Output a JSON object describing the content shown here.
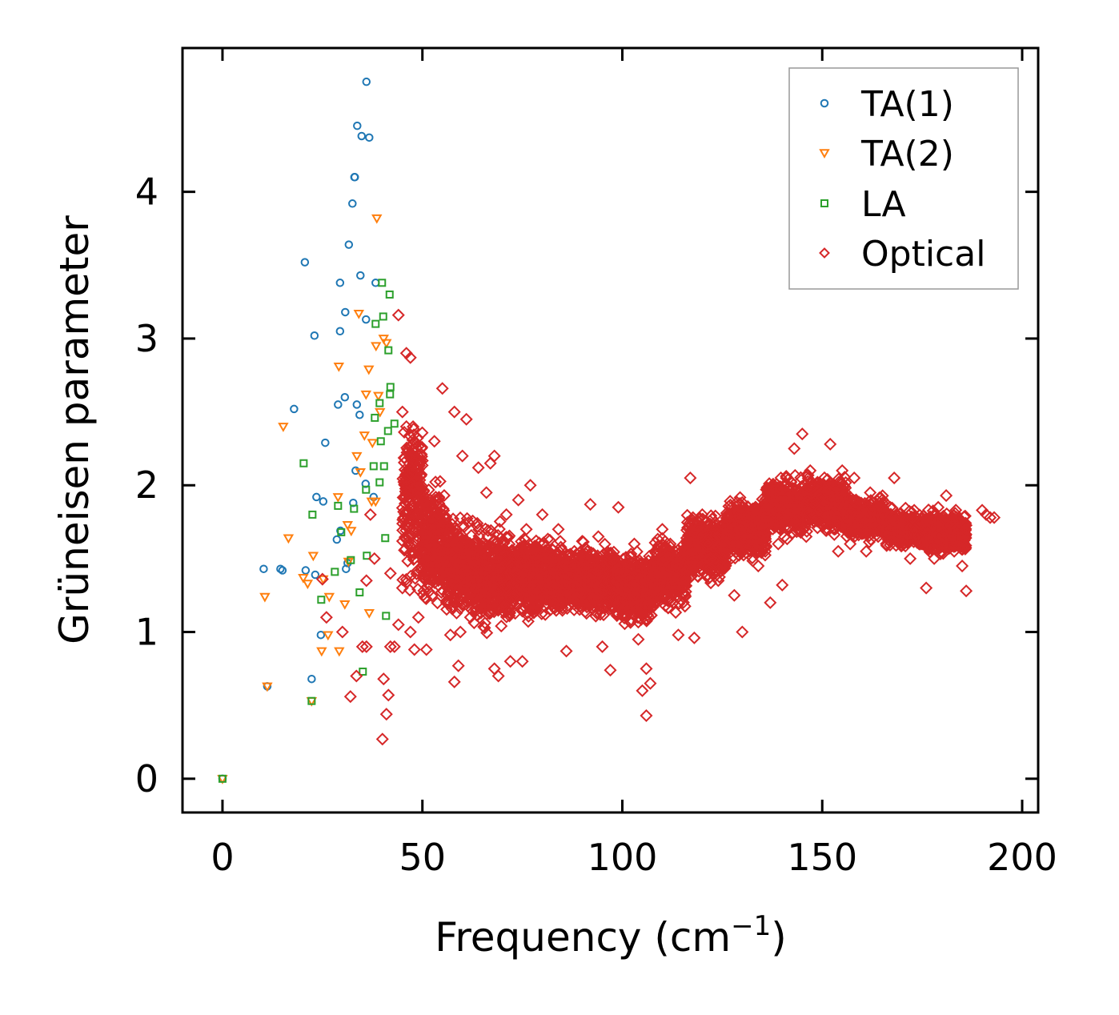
{
  "chart_data": {
    "type": "scatter",
    "title": "",
    "xlabel": "Frequency (cm",
    "xlabel_sup": "−1",
    "xlabel_close": ")",
    "ylabel": "Grüneisen parameter",
    "xlim": [
      -10,
      204
    ],
    "ylim": [
      -0.23,
      4.98
    ],
    "xticks": [
      0,
      50,
      100,
      150,
      200
    ],
    "xtick_labels": [
      "0",
      "50",
      "100",
      "150",
      "200"
    ],
    "yticks": [
      0,
      1,
      2,
      3,
      4
    ],
    "ytick_labels": [
      "0",
      "1",
      "2",
      "3",
      "4"
    ],
    "grid": false,
    "legend_position": "top-right",
    "colors": {
      "ta1": "#1f77b4",
      "ta2": "#ff7f0e",
      "la": "#2ca02c",
      "optical": "#d62728",
      "legend_border": "#999999"
    },
    "series": [
      {
        "key": "ta1",
        "name": "TA(1)",
        "marker": "circle",
        "color": "#1f77b4",
        "points": [
          [
            0,
            0
          ],
          [
            10.3,
            1.43
          ],
          [
            11.2,
            0.63
          ],
          [
            14.5,
            1.43
          ],
          [
            15,
            1.42
          ],
          [
            17.9,
            2.52
          ],
          [
            20.6,
            3.52
          ],
          [
            20.8,
            1.42
          ],
          [
            22.3,
            0.68
          ],
          [
            23,
            3.02
          ],
          [
            23.2,
            1.39
          ],
          [
            23.5,
            1.92
          ],
          [
            24.6,
            0.98
          ],
          [
            25.2,
            1.89
          ],
          [
            25.7,
            2.29
          ],
          [
            28.6,
            1.63
          ],
          [
            28.9,
            2.55
          ],
          [
            29.4,
            3.05
          ],
          [
            29.4,
            3.38
          ],
          [
            29.5,
            1.69
          ],
          [
            30.6,
            2.6
          ],
          [
            30.7,
            3.18
          ],
          [
            30.9,
            1.43
          ],
          [
            31.3,
            1.47
          ],
          [
            31.6,
            3.64
          ],
          [
            32.5,
            3.92
          ],
          [
            32.7,
            1.88
          ],
          [
            33,
            4.1
          ],
          [
            33.1,
            4.1
          ],
          [
            33.3,
            2.1
          ],
          [
            33.6,
            2.55
          ],
          [
            33.7,
            4.45
          ],
          [
            34.3,
            2.48
          ],
          [
            34.5,
            3.43
          ],
          [
            34.8,
            4.38
          ],
          [
            35.8,
            2.01
          ],
          [
            35.9,
            3.13
          ],
          [
            36,
            4.75
          ],
          [
            36.7,
            4.37
          ],
          [
            37.8,
            1.92
          ],
          [
            38.3,
            3.38
          ]
        ]
      },
      {
        "key": "ta2",
        "name": "TA(2)",
        "marker": "triangle-down",
        "color": "#ff7f0e",
        "points": [
          [
            0,
            0
          ],
          [
            10.6,
            1.24
          ],
          [
            11.2,
            0.63
          ],
          [
            15.2,
            2.4
          ],
          [
            16.5,
            1.64
          ],
          [
            20.2,
            1.37
          ],
          [
            21.3,
            1.33
          ],
          [
            22.3,
            0.53
          ],
          [
            22.7,
            1.52
          ],
          [
            24.8,
            0.87
          ],
          [
            25.2,
            1.36
          ],
          [
            26.4,
            0.98
          ],
          [
            26.7,
            1.24
          ],
          [
            28.9,
            1.92
          ],
          [
            29.1,
            2.81
          ],
          [
            29.2,
            0.87
          ],
          [
            30.6,
            1.19
          ],
          [
            31.3,
            1.73
          ],
          [
            31.5,
            1.48
          ],
          [
            32.2,
            1.69
          ],
          [
            33.6,
            2.2
          ],
          [
            34.1,
            3.17
          ],
          [
            34.5,
            2.09
          ],
          [
            35.5,
            2.34
          ],
          [
            35.9,
            2.62
          ],
          [
            36.6,
            2.79
          ],
          [
            36.7,
            1.13
          ],
          [
            37.3,
            1.89
          ],
          [
            37.5,
            2.29
          ],
          [
            38.3,
            1.89
          ],
          [
            38.4,
            2.95
          ],
          [
            38.6,
            3.82
          ],
          [
            39,
            2.61
          ],
          [
            39.4,
            2.5
          ],
          [
            40.3,
            3
          ],
          [
            41,
            2.97
          ]
        ]
      },
      {
        "key": "la",
        "name": "LA",
        "marker": "square",
        "color": "#2ca02c",
        "points": [
          [
            0,
            0
          ],
          [
            20.3,
            2.15
          ],
          [
            22.3,
            0.53
          ],
          [
            22.5,
            1.8
          ],
          [
            24.7,
            1.22
          ],
          [
            28.1,
            1.41
          ],
          [
            28.9,
            1.86
          ],
          [
            29.7,
            1.68
          ],
          [
            32.1,
            1.49
          ],
          [
            32.9,
            1.84
          ],
          [
            34.3,
            1.27
          ],
          [
            35.1,
            0.73
          ],
          [
            35.9,
            1.97
          ],
          [
            36.1,
            1.52
          ],
          [
            37.8,
            2.13
          ],
          [
            38.1,
            2.46
          ],
          [
            38.3,
            3.1
          ],
          [
            39.3,
            2.56
          ],
          [
            39.3,
            2.02
          ],
          [
            39.6,
            2.3
          ],
          [
            39.9,
            3.38
          ],
          [
            40.2,
            3.15
          ],
          [
            40.4,
            2.13
          ],
          [
            40.7,
            1.64
          ],
          [
            40.9,
            1.11
          ],
          [
            41.4,
            2.37
          ],
          [
            41.5,
            2.92
          ],
          [
            41.8,
            3.3
          ],
          [
            41.9,
            2.62
          ],
          [
            42,
            2.67
          ],
          [
            43,
            2.42
          ]
        ]
      },
      {
        "key": "optical",
        "name": "Optical",
        "marker": "diamond",
        "color": "#d62728",
        "points": [
          [
            25,
            1.36
          ],
          [
            26,
            1.1
          ],
          [
            30,
            1.0
          ],
          [
            32,
            0.56
          ],
          [
            33.5,
            0.7
          ],
          [
            35,
            0.9
          ],
          [
            36,
            0.9
          ],
          [
            36,
            1.35
          ],
          [
            37,
            1.8
          ],
          [
            38,
            1.5
          ],
          [
            40,
            0.27
          ],
          [
            40.3,
            0.68
          ],
          [
            41,
            0.44
          ],
          [
            41.5,
            0.57
          ],
          [
            42,
            0.9
          ],
          [
            42,
            1.4
          ],
          [
            43,
            0.9
          ],
          [
            44,
            1.05
          ],
          [
            44,
            3.16
          ],
          [
            45,
            2.5
          ],
          [
            45,
            1.3
          ],
          [
            46,
            2.9
          ],
          [
            46,
            2.4
          ],
          [
            47,
            1.0
          ],
          [
            47,
            2.87
          ],
          [
            48,
            0.88
          ],
          [
            48,
            1.5
          ],
          [
            49,
            1.1
          ],
          [
            49,
            2.2
          ],
          [
            50,
            1.7
          ],
          [
            51,
            0.88
          ],
          [
            52,
            1.9
          ],
          [
            53,
            2.3
          ],
          [
            54,
            1.35
          ],
          [
            55,
            2.66
          ],
          [
            56,
            1.2
          ],
          [
            57,
            0.98
          ],
          [
            58,
            2.5
          ],
          [
            58,
            0.66
          ],
          [
            59,
            0.77
          ],
          [
            59.5,
            1.0
          ],
          [
            60,
            2.2
          ],
          [
            61,
            2.45
          ],
          [
            62,
            1.1
          ],
          [
            63,
            1.6
          ],
          [
            64,
            2.12
          ],
          [
            65,
            1.3
          ],
          [
            66,
            1.95
          ],
          [
            67,
            2.15
          ],
          [
            68,
            0.75
          ],
          [
            68,
            2.2
          ],
          [
            69,
            0.7
          ],
          [
            70,
            1.6
          ],
          [
            71,
            1.8
          ],
          [
            72,
            0.8
          ],
          [
            73,
            1.25
          ],
          [
            74,
            1.9
          ],
          [
            75,
            0.8
          ],
          [
            76,
            1.7
          ],
          [
            77,
            2.0
          ],
          [
            78,
            1.4
          ],
          [
            80,
            1.8
          ],
          [
            82,
            1.15
          ],
          [
            84,
            1.7
          ],
          [
            86,
            0.87
          ],
          [
            88,
            1.55
          ],
          [
            90,
            1.3
          ],
          [
            92,
            1.87
          ],
          [
            94,
            1.65
          ],
          [
            95,
            0.9
          ],
          [
            96,
            1.2
          ],
          [
            97,
            0.74
          ],
          [
            98,
            1.5
          ],
          [
            99,
            1.85
          ],
          [
            100,
            1.4
          ],
          [
            101,
            1.1
          ],
          [
            102,
            1.3
          ],
          [
            103,
            1.6
          ],
          [
            104,
            0.95
          ],
          [
            105,
            0.6
          ],
          [
            106,
            0.43
          ],
          [
            106,
            0.75
          ],
          [
            107,
            0.65
          ],
          [
            108,
            1.2
          ],
          [
            109,
            1.45
          ],
          [
            110,
            1.7
          ],
          [
            111,
            1.3
          ],
          [
            112,
            1.6
          ],
          [
            114,
            0.98
          ],
          [
            116,
            1.35
          ],
          [
            117,
            2.05
          ],
          [
            118,
            0.96
          ],
          [
            120,
            1.8
          ],
          [
            121,
            1.6
          ],
          [
            122,
            1.5
          ],
          [
            124,
            1.35
          ],
          [
            126,
            1.7
          ],
          [
            128,
            1.25
          ],
          [
            130,
            1.0
          ],
          [
            132,
            1.8
          ],
          [
            134,
            1.45
          ],
          [
            136,
            1.75
          ],
          [
            137,
            1.2
          ],
          [
            138,
            1.9
          ],
          [
            139,
            1.6
          ],
          [
            140,
            1.32
          ],
          [
            141,
            2.05
          ],
          [
            142,
            1.8
          ],
          [
            143,
            2.25
          ],
          [
            144,
            1.95
          ],
          [
            145,
            2.35
          ],
          [
            146,
            1.65
          ],
          [
            147,
            2.1
          ],
          [
            148,
            1.75
          ],
          [
            150,
            1.95
          ],
          [
            152,
            2.28
          ],
          [
            153,
            1.7
          ],
          [
            154,
            1.55
          ],
          [
            155,
            2.1
          ],
          [
            156,
            1.85
          ],
          [
            157,
            1.6
          ],
          [
            158,
            2.05
          ],
          [
            160,
            1.8
          ],
          [
            161,
            1.55
          ],
          [
            162,
            1.95
          ],
          [
            164,
            1.7
          ],
          [
            166,
            1.6
          ],
          [
            167,
            1.85
          ],
          [
            168,
            2.05
          ],
          [
            170,
            1.7
          ],
          [
            172,
            1.5
          ],
          [
            173,
            1.83
          ],
          [
            174,
            1.65
          ],
          [
            175,
            1.6
          ],
          [
            176,
            1.3
          ],
          [
            177,
            1.72
          ],
          [
            178,
            1.5
          ],
          [
            179,
            1.85
          ],
          [
            180,
            1.6
          ],
          [
            181,
            1.93
          ],
          [
            182,
            1.75
          ],
          [
            183,
            1.55
          ],
          [
            184,
            1.65
          ],
          [
            185,
            1.45
          ],
          [
            186,
            1.28
          ],
          [
            190,
            1.83
          ],
          [
            191,
            1.8
          ],
          [
            192,
            1.78
          ],
          [
            193,
            1.78
          ]
        ],
        "bands": [
          {
            "x": [
              45,
              50
            ],
            "y": [
              1.2,
              2.6
            ]
          },
          {
            "x": [
              50,
              56
            ],
            "y": [
              1.1,
              2.1
            ]
          },
          {
            "x": [
              56,
              62
            ],
            "y": [
              1.05,
              1.85
            ]
          },
          {
            "x": [
              62,
              72
            ],
            "y": [
              0.95,
              1.8
            ]
          },
          {
            "x": [
              72,
              85
            ],
            "y": [
              1.05,
              1.7
            ]
          },
          {
            "x": [
              85,
              98
            ],
            "y": [
              1.05,
              1.65
            ]
          },
          {
            "x": [
              98,
              108
            ],
            "y": [
              1.0,
              1.6
            ]
          },
          {
            "x": [
              108,
              116
            ],
            "y": [
              1.1,
              1.7
            ]
          },
          {
            "x": [
              116,
              126
            ],
            "y": [
              1.3,
              1.85
            ]
          },
          {
            "x": [
              126,
              136
            ],
            "y": [
              1.45,
              1.95
            ]
          },
          {
            "x": [
              136,
              146
            ],
            "y": [
              1.6,
              2.1
            ]
          },
          {
            "x": [
              146,
              156
            ],
            "y": [
              1.65,
              2.1
            ]
          },
          {
            "x": [
              156,
              166
            ],
            "y": [
              1.6,
              1.95
            ]
          },
          {
            "x": [
              166,
              176
            ],
            "y": [
              1.55,
              1.85
            ]
          },
          {
            "x": [
              176,
              186
            ],
            "y": [
              1.5,
              1.85
            ]
          }
        ]
      }
    ]
  }
}
